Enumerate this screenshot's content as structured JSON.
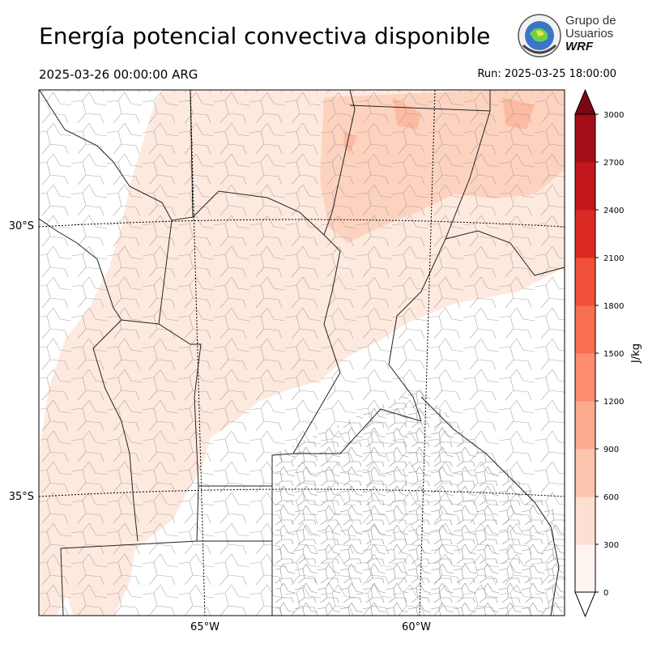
{
  "header": {
    "title": "Energía potencial convectiva disponible",
    "valid_time": "2025-03-26 00:00:00 ARG",
    "run_time": "Run: 2025-03-25 18:00:00"
  },
  "logo": {
    "line1": "Grupo de",
    "line2": "Usuarios",
    "line3": "WRF",
    "icon": "globe-seal-icon"
  },
  "map": {
    "variable": "CAPE",
    "lat_labels": [
      "30°S",
      "35°S"
    ],
    "lon_labels": [
      "65°W",
      "60°W"
    ],
    "colors": {
      "cape_0_300": "#fee9df",
      "cape_300_600": "#fdd3c0",
      "cape_600_900": "#fcbba0",
      "boundary": "#222222",
      "gridline": "#000000"
    }
  },
  "colorbar": {
    "label": "J/kg",
    "ticks": [
      "0",
      "300",
      "600",
      "900",
      "1200",
      "1500",
      "1800",
      "2100",
      "2400",
      "2700",
      "3000"
    ],
    "levels": [
      0,
      300,
      600,
      900,
      1200,
      1500,
      1800,
      2100,
      2400,
      2700,
      3000
    ],
    "colors": [
      "#fff5f0",
      "#fee0d2",
      "#fcc5ad",
      "#fcaa8e",
      "#fc8e6f",
      "#f96f52",
      "#f0503a",
      "#dc2a25",
      "#c1161c",
      "#a30e17",
      "#7b0711"
    ],
    "extend": "both"
  }
}
